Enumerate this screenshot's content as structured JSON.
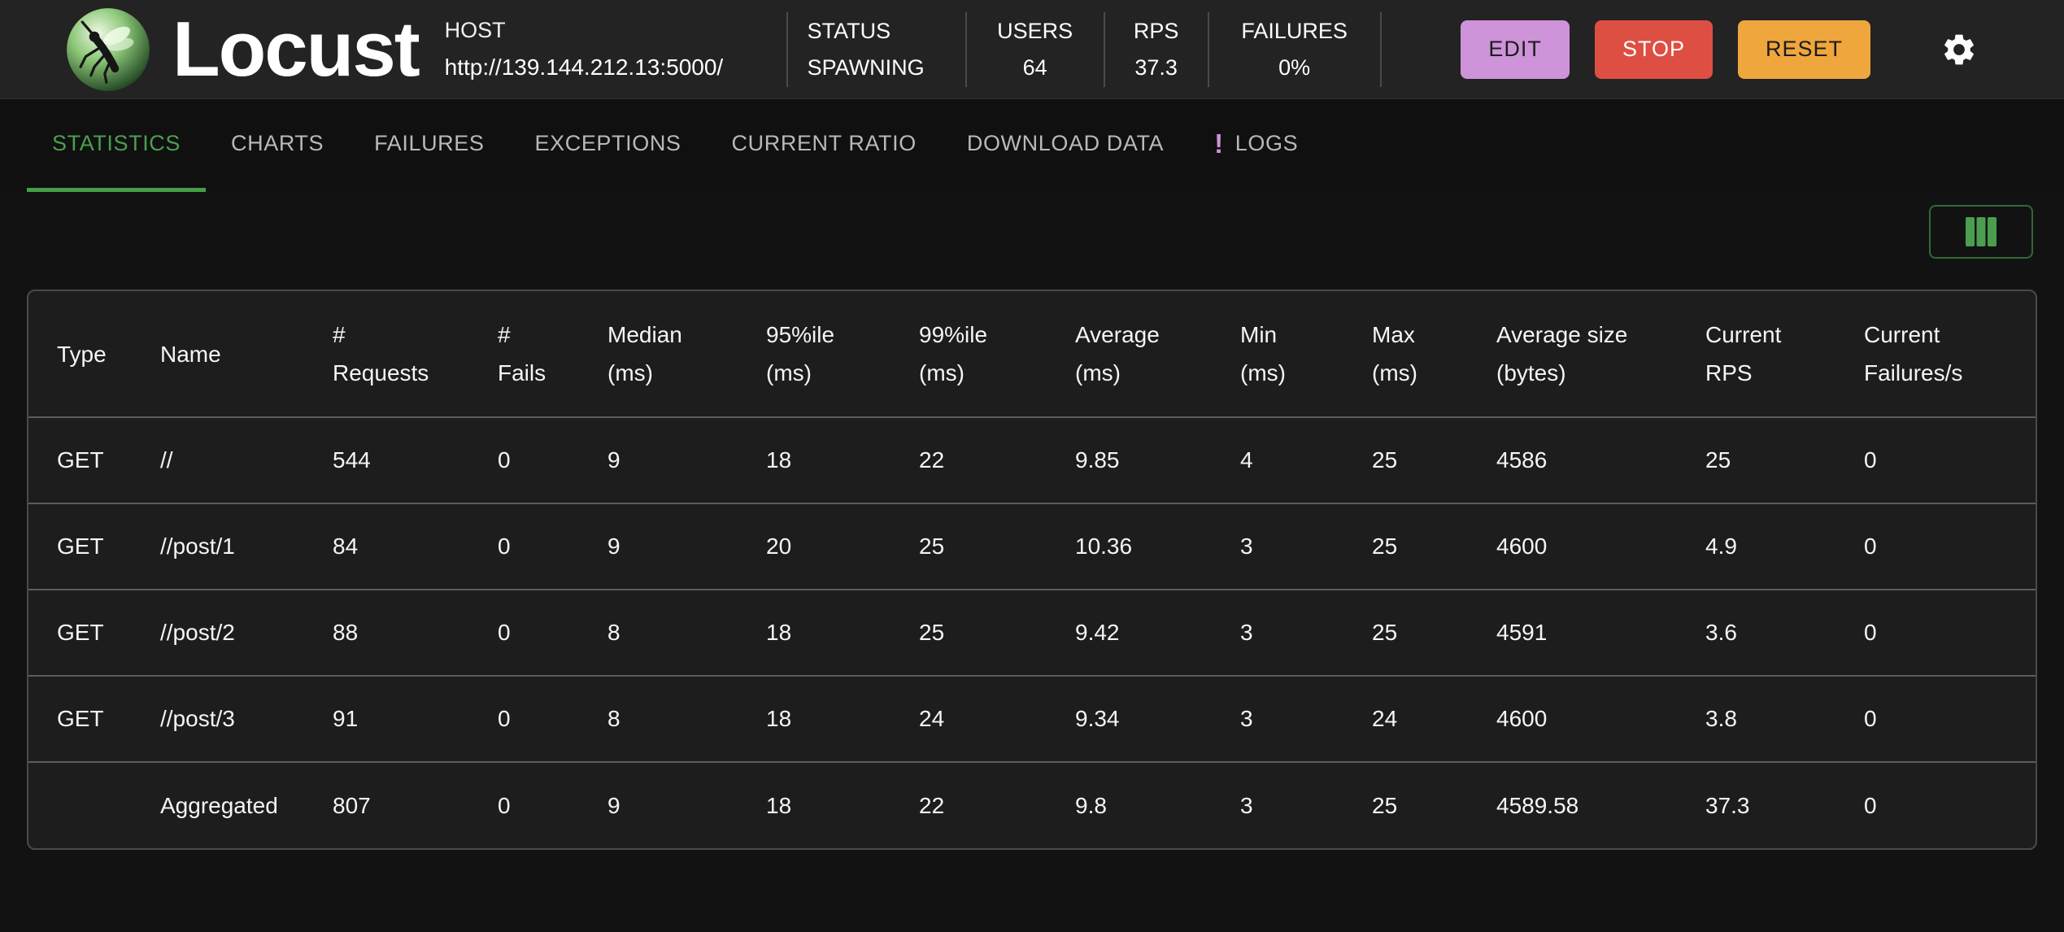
{
  "header": {
    "brand": "Locust",
    "host": {
      "label": "HOST",
      "value": "http://139.144.212.13:5000/"
    },
    "metrics": [
      {
        "id": "status",
        "label": "STATUS",
        "value": "SPAWNING",
        "align": "left"
      },
      {
        "id": "users",
        "label": "USERS",
        "value": "64",
        "align": "center"
      },
      {
        "id": "rps",
        "label": "RPS",
        "value": "37.3",
        "align": "center"
      },
      {
        "id": "failures",
        "label": "FAILURES",
        "value": "0%",
        "align": "center"
      }
    ],
    "actions": [
      {
        "id": "edit",
        "label": "EDIT",
        "bg": "#ce93d8",
        "fg": "#1c1c1c"
      },
      {
        "id": "stop",
        "label": "STOP",
        "bg": "#dd4f43",
        "fg": "#ffffff"
      },
      {
        "id": "reset",
        "label": "RESET",
        "bg": "#efa63d",
        "fg": "#1c1c1c"
      }
    ]
  },
  "tabs": [
    {
      "id": "statistics",
      "label": "STATISTICS",
      "active": true
    },
    {
      "id": "charts",
      "label": "CHARTS"
    },
    {
      "id": "failures",
      "label": "FAILURES"
    },
    {
      "id": "exceptions",
      "label": "EXCEPTIONS"
    },
    {
      "id": "current-ratio",
      "label": "CURRENT RATIO"
    },
    {
      "id": "download-data",
      "label": "DOWNLOAD DATA"
    },
    {
      "id": "logs",
      "label": "LOGS",
      "badge": "!"
    }
  ],
  "table": {
    "columns": [
      {
        "id": "type",
        "lines": [
          "Type"
        ]
      },
      {
        "id": "name",
        "lines": [
          "Name"
        ]
      },
      {
        "id": "requests",
        "lines": [
          "#",
          "Requests"
        ]
      },
      {
        "id": "fails",
        "lines": [
          "#",
          "Fails"
        ]
      },
      {
        "id": "median",
        "lines": [
          "Median",
          "(ms)"
        ]
      },
      {
        "id": "p95",
        "lines": [
          "95%ile",
          "(ms)"
        ]
      },
      {
        "id": "p99",
        "lines": [
          "99%ile",
          "(ms)"
        ]
      },
      {
        "id": "average",
        "lines": [
          "Average",
          "(ms)"
        ]
      },
      {
        "id": "min",
        "lines": [
          "Min",
          "(ms)"
        ]
      },
      {
        "id": "max",
        "lines": [
          "Max",
          "(ms)"
        ]
      },
      {
        "id": "average-size",
        "lines": [
          "Average size",
          "(bytes)"
        ]
      },
      {
        "id": "current-rps",
        "lines": [
          "Current",
          "RPS"
        ]
      },
      {
        "id": "current-failures",
        "lines": [
          "Current",
          "Failures/s"
        ]
      }
    ],
    "rows": [
      [
        "GET",
        "//",
        "544",
        "0",
        "9",
        "18",
        "22",
        "9.85",
        "4",
        "25",
        "4586",
        "25",
        "0"
      ],
      [
        "GET",
        "//post/1",
        "84",
        "0",
        "9",
        "20",
        "25",
        "10.36",
        "3",
        "25",
        "4600",
        "4.9",
        "0"
      ],
      [
        "GET",
        "//post/2",
        "88",
        "0",
        "8",
        "18",
        "25",
        "9.42",
        "3",
        "25",
        "4591",
        "3.6",
        "0"
      ],
      [
        "GET",
        "//post/3",
        "91",
        "0",
        "8",
        "18",
        "24",
        "9.34",
        "3",
        "24",
        "4600",
        "3.8",
        "0"
      ],
      [
        "",
        "Aggregated",
        "807",
        "0",
        "9",
        "18",
        "22",
        "9.8",
        "3",
        "25",
        "4589.58",
        "37.3",
        "0"
      ]
    ]
  },
  "colors": {
    "accent_green": "#4b9e50",
    "logs_badge": "#ce93d8",
    "edit_button": "#ce93d8",
    "stop_button": "#dd4f43",
    "reset_button": "#efa63d"
  }
}
